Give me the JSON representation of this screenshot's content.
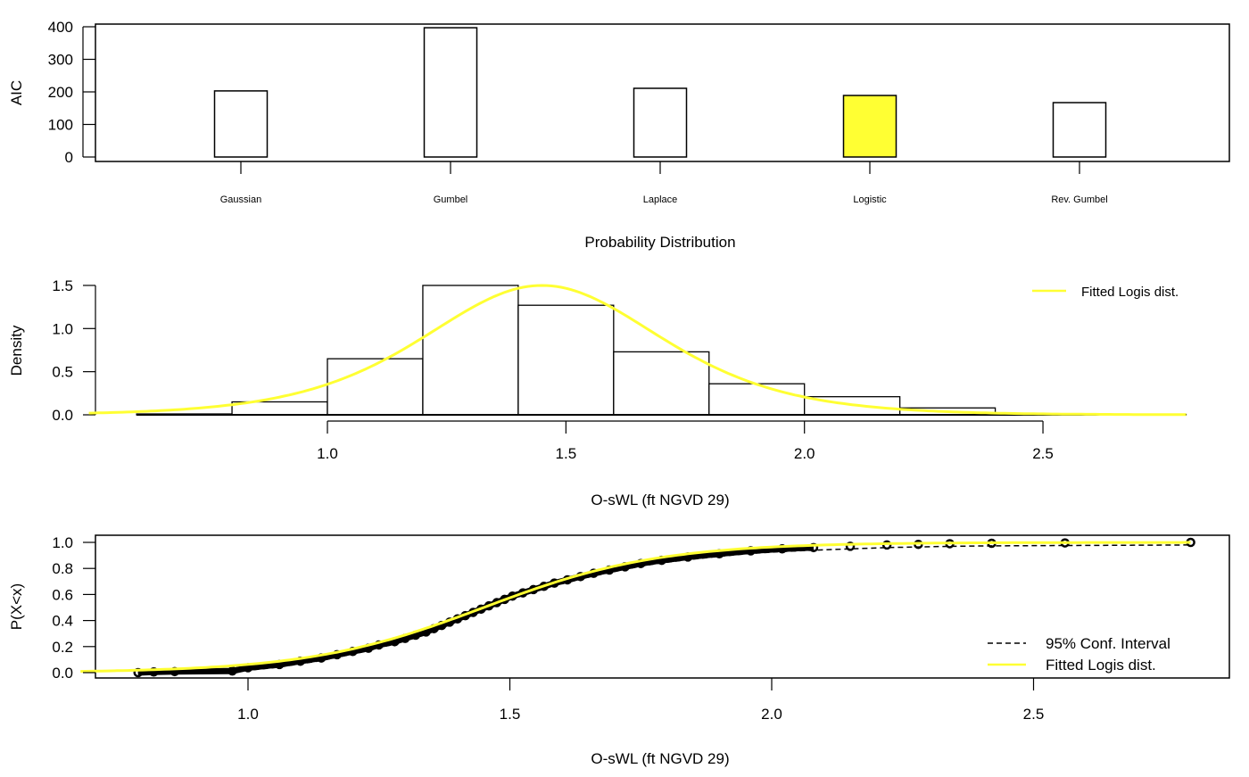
{
  "chart_data": [
    {
      "type": "bar",
      "title": "",
      "xlabel": "Probability Distribution",
      "ylabel": "AIC",
      "ylim": [
        0,
        400
      ],
      "yticks": [
        "0",
        "100",
        "200",
        "300",
        "400"
      ],
      "categories": [
        "Gaussian",
        "Gumbel",
        "Laplace",
        "Logistic",
        "Rev. Gumbel"
      ],
      "values": [
        203,
        397,
        211,
        189,
        167
      ],
      "highlight": "Logistic",
      "highlight_color": "#ffff33"
    },
    {
      "type": "bar",
      "subtype": "histogram",
      "xlabel": "O-sWL (ft NGVD 29)",
      "ylabel": "Density",
      "xticks": [
        "1.0",
        "1.5",
        "2.0",
        "2.5"
      ],
      "yticks": [
        "0.0",
        "0.5",
        "1.0",
        "1.5"
      ],
      "ylim": [
        0,
        1.5
      ],
      "bin_edges": [
        0.6,
        0.8,
        1.0,
        1.2,
        1.4,
        1.6,
        1.8,
        2.0,
        2.2,
        2.4,
        2.6,
        2.8
      ],
      "densities": [
        0.01,
        0.15,
        0.65,
        1.5,
        1.27,
        0.73,
        0.36,
        0.21,
        0.08,
        0.01,
        0.005
      ],
      "fitted": {
        "name": "Fitted Logis dist.",
        "distribution": "logistic",
        "location": 1.45,
        "scale": 0.1667,
        "color": "#ffff33",
        "xrange": [
          0.5,
          2.8
        ]
      },
      "legend": {
        "position": "top-right",
        "entries": [
          "Fitted Logis dist."
        ]
      }
    },
    {
      "type": "line",
      "xlabel": "O-sWL (ft NGVD 29)",
      "ylabel": "P(X<x)",
      "xticks": [
        "1.0",
        "1.5",
        "2.0",
        "2.5"
      ],
      "yticks": [
        "0.0",
        "0.2",
        "0.4",
        "0.6",
        "0.8",
        "1.0"
      ],
      "xlim": [
        0.68,
        2.85
      ],
      "ylim": [
        0,
        1
      ],
      "empirical": [
        [
          0.79,
          0.0
        ],
        [
          0.82,
          0.005
        ],
        [
          0.86,
          0.008
        ],
        [
          0.97,
          0.0125
        ],
        [
          1.0,
          0.0375
        ],
        [
          1.06,
          0.0625
        ],
        [
          1.1,
          0.0875
        ],
        [
          1.14,
          0.1125
        ],
        [
          1.17,
          0.1375
        ],
        [
          1.2,
          0.1625
        ],
        [
          1.23,
          0.1875
        ],
        [
          1.25,
          0.2125
        ],
        [
          1.28,
          0.2375
        ],
        [
          1.3,
          0.2625
        ],
        [
          1.32,
          0.2875
        ],
        [
          1.34,
          0.3125
        ],
        [
          1.355,
          0.3375
        ],
        [
          1.37,
          0.3625
        ],
        [
          1.385,
          0.3875
        ],
        [
          1.4,
          0.4125
        ],
        [
          1.415,
          0.4375
        ],
        [
          1.43,
          0.4625
        ],
        [
          1.445,
          0.4875
        ],
        [
          1.46,
          0.5125
        ],
        [
          1.475,
          0.5375
        ],
        [
          1.49,
          0.5625
        ],
        [
          1.505,
          0.5875
        ],
        [
          1.525,
          0.6125
        ],
        [
          1.545,
          0.6375
        ],
        [
          1.565,
          0.6625
        ],
        [
          1.585,
          0.6875
        ],
        [
          1.61,
          0.7125
        ],
        [
          1.635,
          0.7375
        ],
        [
          1.66,
          0.7625
        ],
        [
          1.69,
          0.7875
        ],
        [
          1.72,
          0.8125
        ],
        [
          1.75,
          0.8375
        ],
        [
          1.79,
          0.8625
        ],
        [
          1.84,
          0.8875
        ],
        [
          1.9,
          0.9125
        ],
        [
          1.96,
          0.935
        ],
        [
          2.02,
          0.95
        ],
        [
          2.08,
          0.96
        ],
        [
          2.15,
          0.97
        ],
        [
          2.22,
          0.98
        ],
        [
          2.28,
          0.985
        ],
        [
          2.34,
          0.99
        ],
        [
          2.42,
          0.993
        ],
        [
          2.56,
          0.996
        ],
        [
          2.8,
          1.0
        ]
      ],
      "fitted": {
        "name": "Fitted Logis dist.",
        "distribution": "logistic",
        "location": 1.45,
        "scale": 0.1667,
        "color": "#ffff33"
      },
      "legend": {
        "position": "bottom-right",
        "entries": [
          "95% Conf. Interval",
          "Fitted Logis dist."
        ]
      }
    }
  ]
}
